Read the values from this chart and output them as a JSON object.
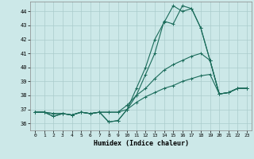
{
  "xlabel": "Humidex (Indice chaleur)",
  "bg_color": "#cce8e8",
  "grid_color": "#aacccc",
  "line_color": "#1a6b5a",
  "xlim": [
    -0.5,
    23.5
  ],
  "ylim": [
    35.5,
    44.7
  ],
  "yticks": [
    36,
    37,
    38,
    39,
    40,
    41,
    42,
    43,
    44
  ],
  "xticks": [
    0,
    1,
    2,
    3,
    4,
    5,
    6,
    7,
    8,
    9,
    10,
    11,
    12,
    13,
    14,
    15,
    16,
    17,
    18,
    19,
    20,
    21,
    22,
    23
  ],
  "series": [
    [
      36.8,
      36.8,
      36.5,
      36.7,
      36.6,
      36.8,
      36.7,
      36.8,
      36.1,
      36.2,
      37.0,
      38.5,
      40.0,
      42.0,
      43.2,
      44.4,
      44.0,
      44.2,
      42.8,
      40.5,
      38.1,
      38.2,
      38.5,
      38.5
    ],
    [
      36.8,
      36.8,
      36.5,
      36.7,
      36.6,
      36.8,
      36.7,
      36.8,
      36.1,
      36.2,
      37.0,
      38.0,
      39.5,
      41.0,
      43.3,
      43.1,
      44.4,
      44.2,
      42.8,
      40.5,
      38.1,
      38.2,
      38.5,
      38.5
    ],
    [
      36.8,
      36.8,
      36.7,
      36.7,
      36.6,
      36.8,
      36.7,
      36.8,
      36.8,
      36.8,
      37.3,
      38.0,
      38.5,
      39.2,
      39.8,
      40.2,
      40.5,
      40.8,
      41.0,
      40.5,
      38.1,
      38.2,
      38.5,
      38.5
    ],
    [
      36.8,
      36.8,
      36.7,
      36.7,
      36.6,
      36.8,
      36.7,
      36.8,
      36.8,
      36.8,
      37.0,
      37.5,
      37.9,
      38.2,
      38.5,
      38.7,
      39.0,
      39.2,
      39.4,
      39.5,
      38.1,
      38.2,
      38.5,
      38.5
    ]
  ]
}
